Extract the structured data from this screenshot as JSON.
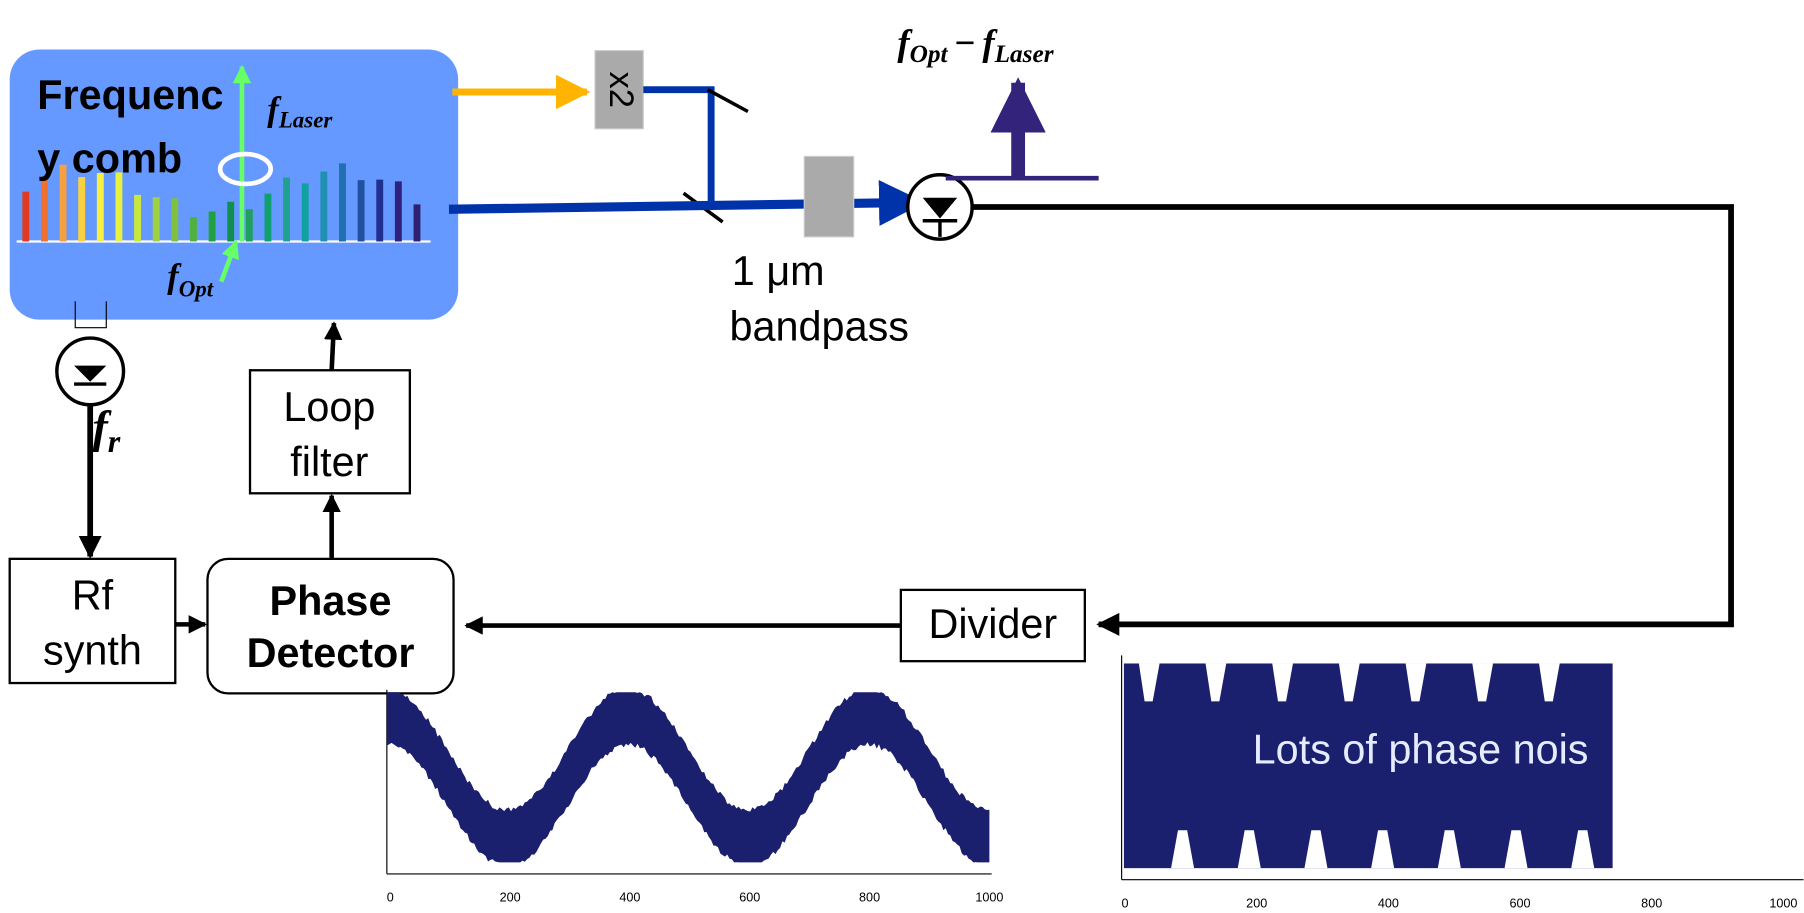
{
  "comb": {
    "lines": [
      "Frequenc",
      "y comb"
    ],
    "f_laser": {
      "main": "f",
      "sub": "Laser"
    },
    "f_opt": {
      "main": "f",
      "sub": "Opt"
    }
  },
  "beat": {
    "left": {
      "main": "f",
      "sub": "Opt"
    },
    "op": "−",
    "right": {
      "main": "f",
      "sub": "Laser"
    }
  },
  "doubler": "x2",
  "filter": {
    "lines": [
      "1 μm",
      "bandpass"
    ]
  },
  "rep_rate": {
    "main": "f",
    "sub": "r"
  },
  "loop_filter": {
    "lines": [
      "Loop",
      "filter"
    ]
  },
  "rf_synth": {
    "lines": [
      "Rf",
      "synth"
    ]
  },
  "phase_detector": {
    "lines": [
      "Phase",
      "Detector"
    ]
  },
  "divider": "Divider",
  "plot_left": {
    "xticks": [
      "0",
      "200",
      "400",
      "600",
      "800",
      "1000"
    ]
  },
  "plot_right": {
    "annotation": "Lots of phase nois",
    "xticks": [
      "0",
      "200",
      "400",
      "600",
      "800",
      "1000"
    ]
  }
}
